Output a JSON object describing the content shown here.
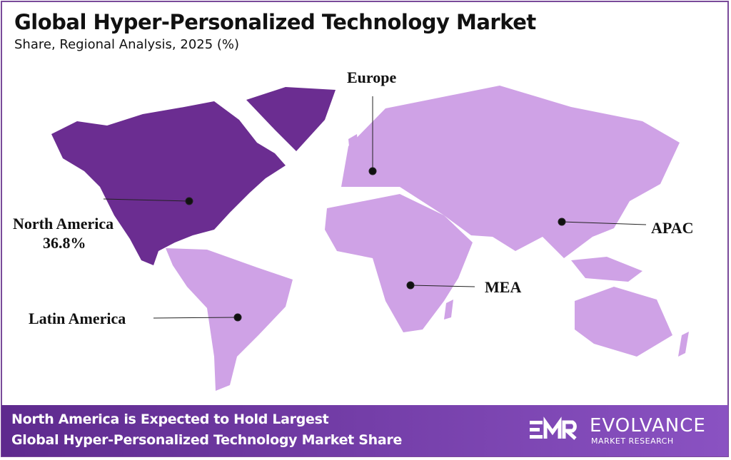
{
  "title": "Global Hyper-Personalized Technology Market",
  "subtitle": "Share, Regional Analysis, 2025 (%)",
  "colors": {
    "highlight_region": "#6b2d91",
    "other_regions": "#cfa2e6",
    "footer": "#6f3aa6"
  },
  "regions": [
    {
      "name": "North America",
      "value": "36.8%",
      "highlighted": true
    },
    {
      "name": "Europe",
      "highlighted": false
    },
    {
      "name": "APAC",
      "highlighted": false
    },
    {
      "name": "MEA",
      "highlighted": false
    },
    {
      "name": "Latin America",
      "highlighted": false
    }
  ],
  "footer": {
    "text": "North America is Expected to Hold Largest\nGlobal Hyper-Personalized Technology Market Share"
  },
  "logo": {
    "mark": "EMR",
    "name": "EVOLVANCE",
    "tagline": "MARKET RESEARCH"
  }
}
